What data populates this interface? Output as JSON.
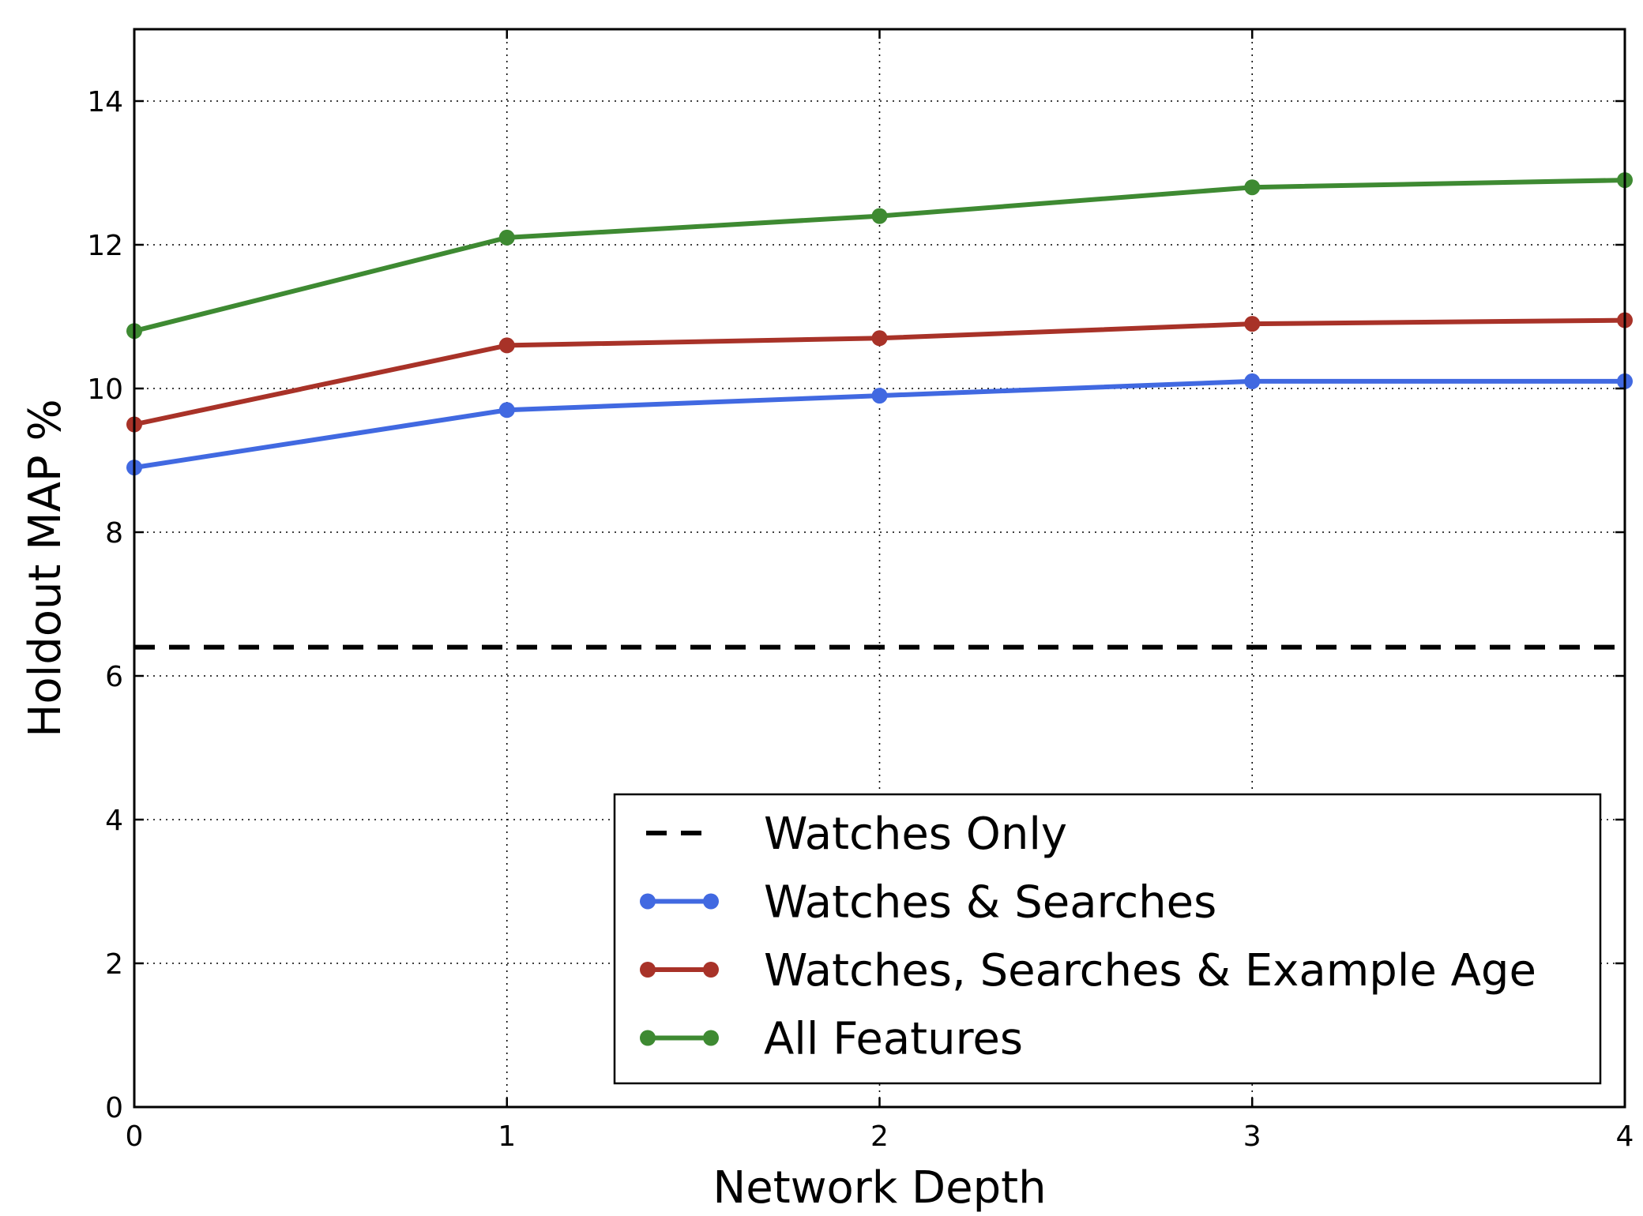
{
  "chart_data": {
    "type": "line",
    "title": "",
    "xlabel": "Network Depth",
    "ylabel": "Holdout MAP %",
    "xlim": [
      0,
      4
    ],
    "ylim": [
      0,
      15
    ],
    "x_ticks": [
      0,
      1,
      2,
      3,
      4
    ],
    "y_ticks": [
      0,
      2,
      4,
      6,
      8,
      10,
      12,
      14
    ],
    "grid": true,
    "legend_position": "lower-right",
    "x": [
      0,
      1,
      2,
      3,
      4
    ],
    "series": [
      {
        "name": "Watches Only",
        "values": [
          6.4,
          6.4,
          6.4,
          6.4,
          6.4
        ],
        "color": "#000000",
        "style": "dashed",
        "markers": false
      },
      {
        "name": "Watches & Searches",
        "values": [
          8.9,
          9.7,
          9.9,
          10.1,
          10.1
        ],
        "color": "#4169e1",
        "style": "solid",
        "markers": true
      },
      {
        "name": "Watches, Searches & Example Age",
        "values": [
          9.5,
          10.6,
          10.7,
          10.9,
          10.95
        ],
        "color": "#a83228",
        "style": "solid",
        "markers": true
      },
      {
        "name": "All Features",
        "values": [
          10.8,
          12.1,
          12.4,
          12.8,
          12.9
        ],
        "color": "#3e8a32",
        "style": "solid",
        "markers": true
      }
    ]
  }
}
